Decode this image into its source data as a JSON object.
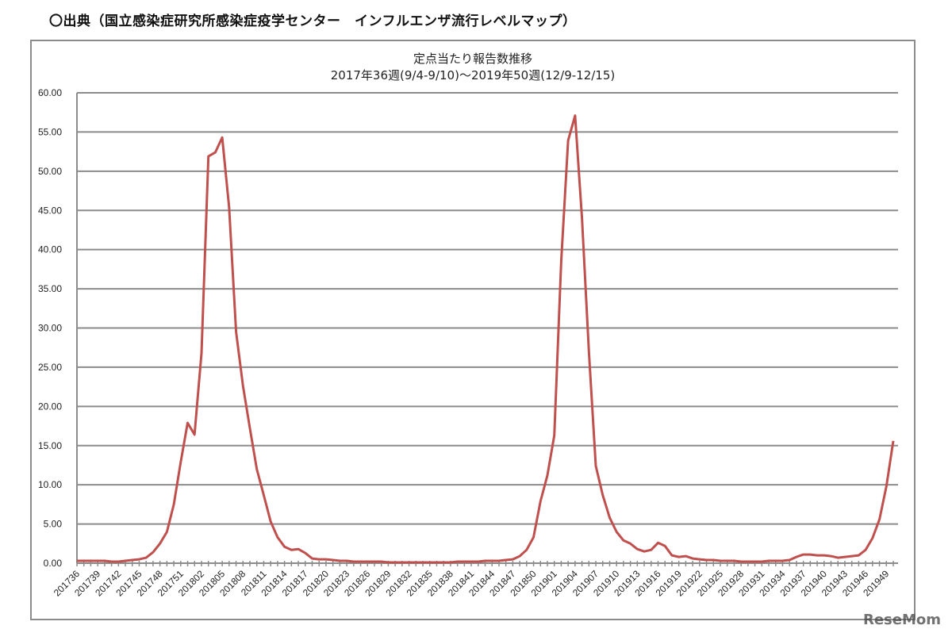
{
  "header": "〇出典（国立感染症研究所感染症疫学センター　インフルエンザ流行レベルマップ）",
  "watermark": "ReseMom",
  "chart_data": {
    "type": "line",
    "title": "定点当たり報告数推移",
    "subtitle": "2017年36週(9/4-9/10)～2019年50週(12/9-12/15)",
    "xlabel": "",
    "ylabel": "",
    "ylim": [
      0,
      60
    ],
    "yticks": [
      "0.00",
      "5.00",
      "10.00",
      "15.00",
      "20.00",
      "25.00",
      "30.00",
      "35.00",
      "40.00",
      "45.00",
      "50.00",
      "55.00",
      "60.00"
    ],
    "grid": true,
    "legend": "none",
    "line_color": "#c0504d",
    "x": [
      "201736",
      "201737",
      "201738",
      "201739",
      "201740",
      "201741",
      "201742",
      "201743",
      "201744",
      "201745",
      "201746",
      "201747",
      "201748",
      "201749",
      "201750",
      "201751",
      "201752",
      "201801",
      "201802",
      "201803",
      "201804",
      "201805",
      "201806",
      "201807",
      "201808",
      "201809",
      "201810",
      "201811",
      "201812",
      "201813",
      "201814",
      "201815",
      "201816",
      "201817",
      "201818",
      "201819",
      "201820",
      "201821",
      "201822",
      "201823",
      "201824",
      "201825",
      "201826",
      "201827",
      "201828",
      "201829",
      "201830",
      "201831",
      "201832",
      "201833",
      "201834",
      "201835",
      "201836",
      "201837",
      "201838",
      "201839",
      "201840",
      "201841",
      "201842",
      "201843",
      "201844",
      "201845",
      "201846",
      "201847",
      "201848",
      "201849",
      "201850",
      "201851",
      "201852",
      "201901",
      "201902",
      "201903",
      "201904",
      "201905",
      "201906",
      "201907",
      "201908",
      "201909",
      "201910",
      "201911",
      "201912",
      "201913",
      "201914",
      "201915",
      "201916",
      "201917",
      "201918",
      "201919",
      "201920",
      "201921",
      "201922",
      "201923",
      "201924",
      "201925",
      "201926",
      "201927",
      "201928",
      "201929",
      "201930",
      "201931",
      "201932",
      "201933",
      "201934",
      "201935",
      "201936",
      "201937",
      "201938",
      "201939",
      "201940",
      "201941",
      "201942",
      "201943",
      "201944",
      "201945",
      "201946",
      "201947",
      "201948",
      "201949",
      "201950"
    ],
    "values": [
      0.3,
      0.3,
      0.3,
      0.3,
      0.3,
      0.2,
      0.2,
      0.3,
      0.4,
      0.5,
      0.7,
      1.4,
      2.5,
      4.0,
      7.5,
      12.9,
      17.9,
      16.4,
      26.8,
      51.9,
      52.4,
      54.3,
      45.4,
      29.5,
      22.6,
      17.2,
      12.0,
      8.7,
      5.3,
      3.3,
      2.1,
      1.7,
      1.8,
      1.3,
      0.6,
      0.5,
      0.5,
      0.4,
      0.3,
      0.3,
      0.2,
      0.2,
      0.2,
      0.2,
      0.2,
      0.1,
      0.1,
      0.1,
      0.1,
      0.1,
      0.1,
      0.1,
      0.1,
      0.1,
      0.1,
      0.2,
      0.2,
      0.2,
      0.2,
      0.3,
      0.3,
      0.3,
      0.4,
      0.5,
      0.9,
      1.7,
      3.3,
      7.9,
      11.2,
      16.3,
      38.5,
      53.9,
      57.1,
      44.0,
      27.0,
      12.4,
      8.7,
      5.8,
      4.0,
      2.9,
      2.5,
      1.8,
      1.5,
      1.7,
      2.6,
      2.2,
      1.0,
      0.8,
      0.9,
      0.6,
      0.5,
      0.4,
      0.4,
      0.3,
      0.3,
      0.3,
      0.2,
      0.2,
      0.2,
      0.2,
      0.3,
      0.3,
      0.3,
      0.4,
      0.8,
      1.1,
      1.1,
      1.0,
      1.0,
      0.9,
      0.7,
      0.8,
      0.9,
      1.0,
      1.7,
      3.2,
      5.6,
      9.8,
      15.6
    ],
    "x_tick_every": 3
  }
}
